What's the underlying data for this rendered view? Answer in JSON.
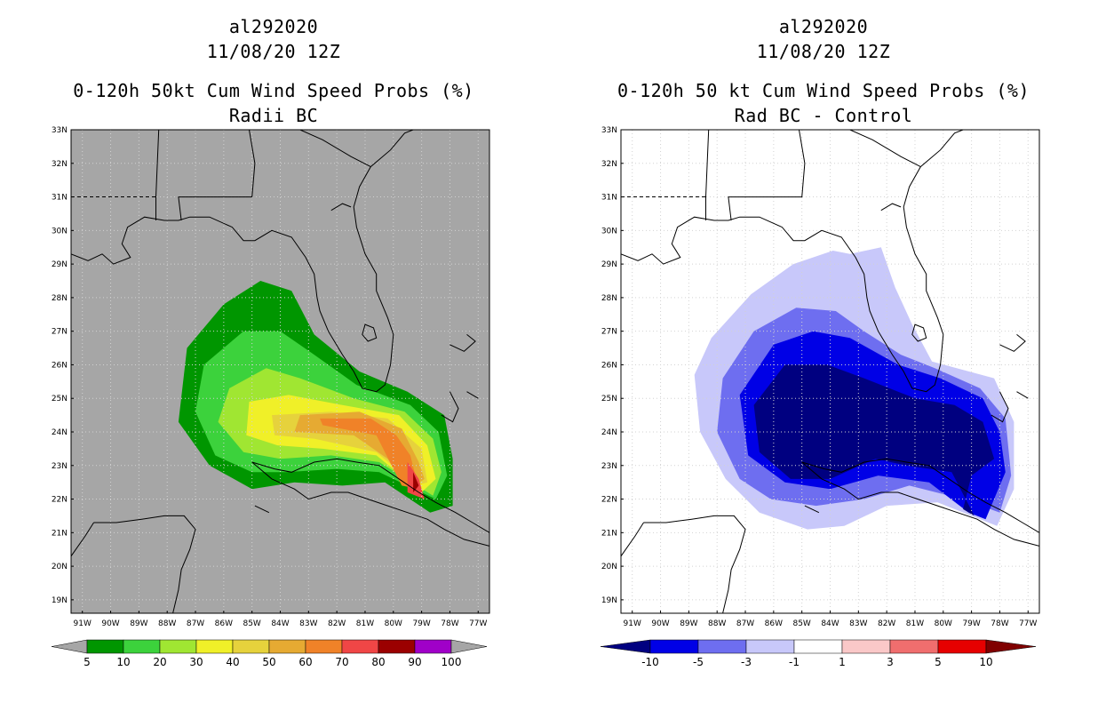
{
  "left_panel": {
    "storm_id": "al292020",
    "datetime": "11/08/20 12Z",
    "product": "0-120h 50kt Cum Wind Speed Probs (%)",
    "subtitle": "Radii BC",
    "background_color": "#a6a6a6",
    "colorbar": {
      "labels": [
        "5",
        "10",
        "20",
        "30",
        "40",
        "50",
        "60",
        "70",
        "80",
        "90",
        "100"
      ],
      "colors": [
        "#009600",
        "#3cd23c",
        "#a0e632",
        "#f0f028",
        "#e6d23c",
        "#e6aa32",
        "#f08228",
        "#f04646",
        "#9b0000",
        "#a000c8"
      ]
    },
    "levels": [
      5,
      10,
      20,
      30,
      40,
      50,
      60,
      70,
      80,
      90
    ]
  },
  "right_panel": {
    "storm_id": "al292020",
    "datetime": "11/08/20 12Z",
    "product": "0-120h 50 kt Cum Wind Speed Probs (%)",
    "subtitle": "Rad BC - Control",
    "background_color": "#ffffff",
    "colorbar": {
      "labels": [
        "-10",
        "-5",
        "-3",
        "-1",
        "1",
        "3",
        "5",
        "10"
      ],
      "colors": [
        "#000080",
        "#0000e6",
        "#6e6ef0",
        "#c8c8fa",
        "#ffffff",
        "#fac8c8",
        "#f06e6e",
        "#e60000",
        "#800000"
      ]
    }
  },
  "axes": {
    "lat_labels": [
      "33N",
      "32N",
      "31N",
      "30N",
      "29N",
      "28N",
      "27N",
      "26N",
      "25N",
      "24N",
      "23N",
      "22N",
      "21N",
      "20N",
      "19N"
    ],
    "lon_labels": [
      "91W",
      "90W",
      "89W",
      "88W",
      "87W",
      "86W",
      "85W",
      "84W",
      "83W",
      "82W",
      "81W",
      "80W",
      "79W",
      "78W",
      "77W"
    ],
    "lon_range": [
      -91.4,
      -76.6
    ],
    "lat_range": [
      18.6,
      33.0
    ]
  },
  "chart_data": [
    {
      "type": "heatmap",
      "title": "0-120h 50kt Cum Wind Speed Probs (%) - Radii BC",
      "units": "%",
      "levels": [
        5,
        10,
        20,
        30,
        40,
        50,
        60,
        70,
        80,
        90,
        100
      ],
      "contours": [
        {
          "level": 5,
          "polygon": [
            [
              -87.3,
              26.5
            ],
            [
              -86.0,
              27.8
            ],
            [
              -84.7,
              28.5
            ],
            [
              -83.6,
              28.2
            ],
            [
              -82.8,
              26.9
            ],
            [
              -81.2,
              25.8
            ],
            [
              -79.5,
              25.2
            ],
            [
              -78.2,
              24.5
            ],
            [
              -77.9,
              23.2
            ],
            [
              -77.9,
              21.8
            ],
            [
              -78.7,
              21.6
            ],
            [
              -80.3,
              22.5
            ],
            [
              -81.8,
              22.4
            ],
            [
              -83.5,
              22.5
            ],
            [
              -85.0,
              22.3
            ],
            [
              -86.5,
              23.0
            ],
            [
              -87.6,
              24.3
            ]
          ]
        },
        {
          "level": 10,
          "polygon": [
            [
              -86.7,
              26.0
            ],
            [
              -85.3,
              27.0
            ],
            [
              -84.0,
              27.0
            ],
            [
              -82.8,
              26.3
            ],
            [
              -81.3,
              25.4
            ],
            [
              -79.4,
              24.8
            ],
            [
              -78.4,
              24.0
            ],
            [
              -78.1,
              22.7
            ],
            [
              -78.5,
              22.0
            ],
            [
              -80.5,
              22.8
            ],
            [
              -82.0,
              22.9
            ],
            [
              -83.8,
              22.8
            ],
            [
              -85.0,
              22.8
            ],
            [
              -86.3,
              23.3
            ],
            [
              -87.0,
              24.6
            ]
          ]
        },
        {
          "level": 20,
          "polygon": [
            [
              -85.8,
              25.3
            ],
            [
              -84.5,
              25.9
            ],
            [
              -83.3,
              25.6
            ],
            [
              -81.4,
              25.0
            ],
            [
              -79.6,
              24.6
            ],
            [
              -78.6,
              23.8
            ],
            [
              -78.3,
              22.8
            ],
            [
              -78.6,
              22.1
            ],
            [
              -80.5,
              23.1
            ],
            [
              -82.2,
              23.3
            ],
            [
              -84.0,
              23.2
            ],
            [
              -85.3,
              23.4
            ],
            [
              -86.2,
              24.3
            ]
          ]
        },
        {
          "level": 30,
          "polygon": [
            [
              -85.1,
              24.9
            ],
            [
              -83.7,
              25.1
            ],
            [
              -81.8,
              24.8
            ],
            [
              -79.8,
              24.5
            ],
            [
              -78.8,
              23.6
            ],
            [
              -78.5,
              22.6
            ],
            [
              -79.0,
              22.2
            ],
            [
              -80.6,
              23.3
            ],
            [
              -82.5,
              23.5
            ],
            [
              -84.1,
              23.6
            ],
            [
              -85.2,
              23.9
            ]
          ]
        },
        {
          "level": 40,
          "polygon": [
            [
              -84.3,
              24.5
            ],
            [
              -82.2,
              24.6
            ],
            [
              -80.2,
              24.4
            ],
            [
              -79.0,
              23.5
            ],
            [
              -78.8,
              22.5
            ],
            [
              -79.2,
              22.4
            ],
            [
              -80.6,
              23.4
            ],
            [
              -82.8,
              23.8
            ],
            [
              -84.2,
              23.9
            ]
          ]
        },
        {
          "level": 50,
          "polygon": [
            [
              -83.3,
              24.5
            ],
            [
              -81.2,
              24.6
            ],
            [
              -79.7,
              24.1
            ],
            [
              -79.1,
              23.1
            ],
            [
              -78.9,
              22.6
            ],
            [
              -79.4,
              22.3
            ],
            [
              -80.2,
              23.2
            ],
            [
              -81.4,
              23.9
            ],
            [
              -83.5,
              24.0
            ]
          ]
        },
        {
          "level": 60,
          "polygon": [
            [
              -82.6,
              24.4
            ],
            [
              -80.8,
              24.4
            ],
            [
              -79.9,
              23.9
            ],
            [
              -79.4,
              23.3
            ],
            [
              -79.1,
              22.3
            ],
            [
              -79.7,
              22.4
            ],
            [
              -80.6,
              23.9
            ],
            [
              -82.5,
              24.2
            ]
          ]
        },
        {
          "level": 70,
          "polygon": [
            [
              -79.5,
              23.1
            ],
            [
              -79.1,
              22.6
            ],
            [
              -78.9,
              22.0
            ],
            [
              -79.5,
              22.2
            ]
          ]
        },
        {
          "level": 80,
          "polygon": [
            [
              -79.3,
              22.8
            ],
            [
              -79.1,
              22.4
            ],
            [
              -79.3,
              22.2
            ]
          ]
        }
      ]
    },
    {
      "type": "heatmap",
      "title": "0-120h 50 kt Cum Wind Speed Probs (%) - Rad BC - Control",
      "units": "%",
      "levels": [
        -10,
        -5,
        -3,
        -1,
        1,
        3,
        5,
        10
      ],
      "contours": [
        {
          "level": -1,
          "polygon": [
            [
              -88.2,
              26.8
            ],
            [
              -86.8,
              28.1
            ],
            [
              -85.3,
              29.0
            ],
            [
              -83.9,
              29.4
            ],
            [
              -83.3,
              29.3
            ],
            [
              -82.2,
              29.5
            ],
            [
              -81.7,
              28.3
            ],
            [
              -81.1,
              27.2
            ],
            [
              -80.4,
              26.1
            ],
            [
              -78.2,
              25.6
            ],
            [
              -77.5,
              24.3
            ],
            [
              -77.5,
              22.3
            ],
            [
              -78.1,
              21.2
            ],
            [
              -80.2,
              21.9
            ],
            [
              -82.0,
              21.8
            ],
            [
              -83.5,
              21.2
            ],
            [
              -84.8,
              21.1
            ],
            [
              -86.5,
              21.6
            ],
            [
              -87.7,
              22.6
            ],
            [
              -88.6,
              24.0
            ],
            [
              -88.8,
              25.7
            ]
          ]
        },
        {
          "level": -3,
          "polygon": [
            [
              -87.8,
              25.6
            ],
            [
              -86.7,
              27.0
            ],
            [
              -85.2,
              27.7
            ],
            [
              -83.8,
              27.6
            ],
            [
              -82.8,
              27.0
            ],
            [
              -81.5,
              26.3
            ],
            [
              -80.3,
              25.9
            ],
            [
              -78.7,
              25.3
            ],
            [
              -77.8,
              24.4
            ],
            [
              -77.6,
              22.7
            ],
            [
              -78.0,
              21.6
            ],
            [
              -79.3,
              22.0
            ],
            [
              -81.2,
              22.4
            ],
            [
              -82.8,
              22.0
            ],
            [
              -84.5,
              21.8
            ],
            [
              -86.1,
              22.0
            ],
            [
              -87.2,
              22.6
            ],
            [
              -88.0,
              24.0
            ]
          ]
        },
        {
          "level": -5,
          "polygon": [
            [
              -87.2,
              25.1
            ],
            [
              -86.0,
              26.6
            ],
            [
              -84.6,
              27.0
            ],
            [
              -83.3,
              26.8
            ],
            [
              -81.6,
              26.0
            ],
            [
              -80.1,
              25.6
            ],
            [
              -78.6,
              25.0
            ],
            [
              -78.0,
              24.0
            ],
            [
              -77.8,
              22.8
            ],
            [
              -78.5,
              21.4
            ],
            [
              -79.1,
              21.6
            ],
            [
              -80.5,
              22.5
            ],
            [
              -82.3,
              22.7
            ],
            [
              -84.0,
              22.3
            ],
            [
              -85.6,
              22.5
            ],
            [
              -86.9,
              23.3
            ]
          ]
        },
        {
          "level": -10,
          "polygon": [
            [
              -86.7,
              24.8
            ],
            [
              -85.6,
              26.0
            ],
            [
              -84.1,
              26.0
            ],
            [
              -82.8,
              25.6
            ],
            [
              -81.0,
              25.0
            ],
            [
              -79.6,
              24.8
            ],
            [
              -78.6,
              24.3
            ],
            [
              -78.2,
              23.2
            ],
            [
              -79.0,
              22.7
            ],
            [
              -79.3,
              21.7
            ],
            [
              -78.9,
              21.5
            ],
            [
              -79.7,
              22.8
            ],
            [
              -81.3,
              23.0
            ],
            [
              -82.4,
              23.2
            ],
            [
              -84.0,
              22.6
            ],
            [
              -85.4,
              22.6
            ],
            [
              -86.5,
              23.4
            ]
          ]
        },
        {
          "level": 1,
          "polygon": [
            [
              -80.6,
              22.6
            ],
            [
              -80.3,
              22.9
            ],
            [
              -79.9,
              22.5
            ]
          ]
        }
      ]
    }
  ]
}
